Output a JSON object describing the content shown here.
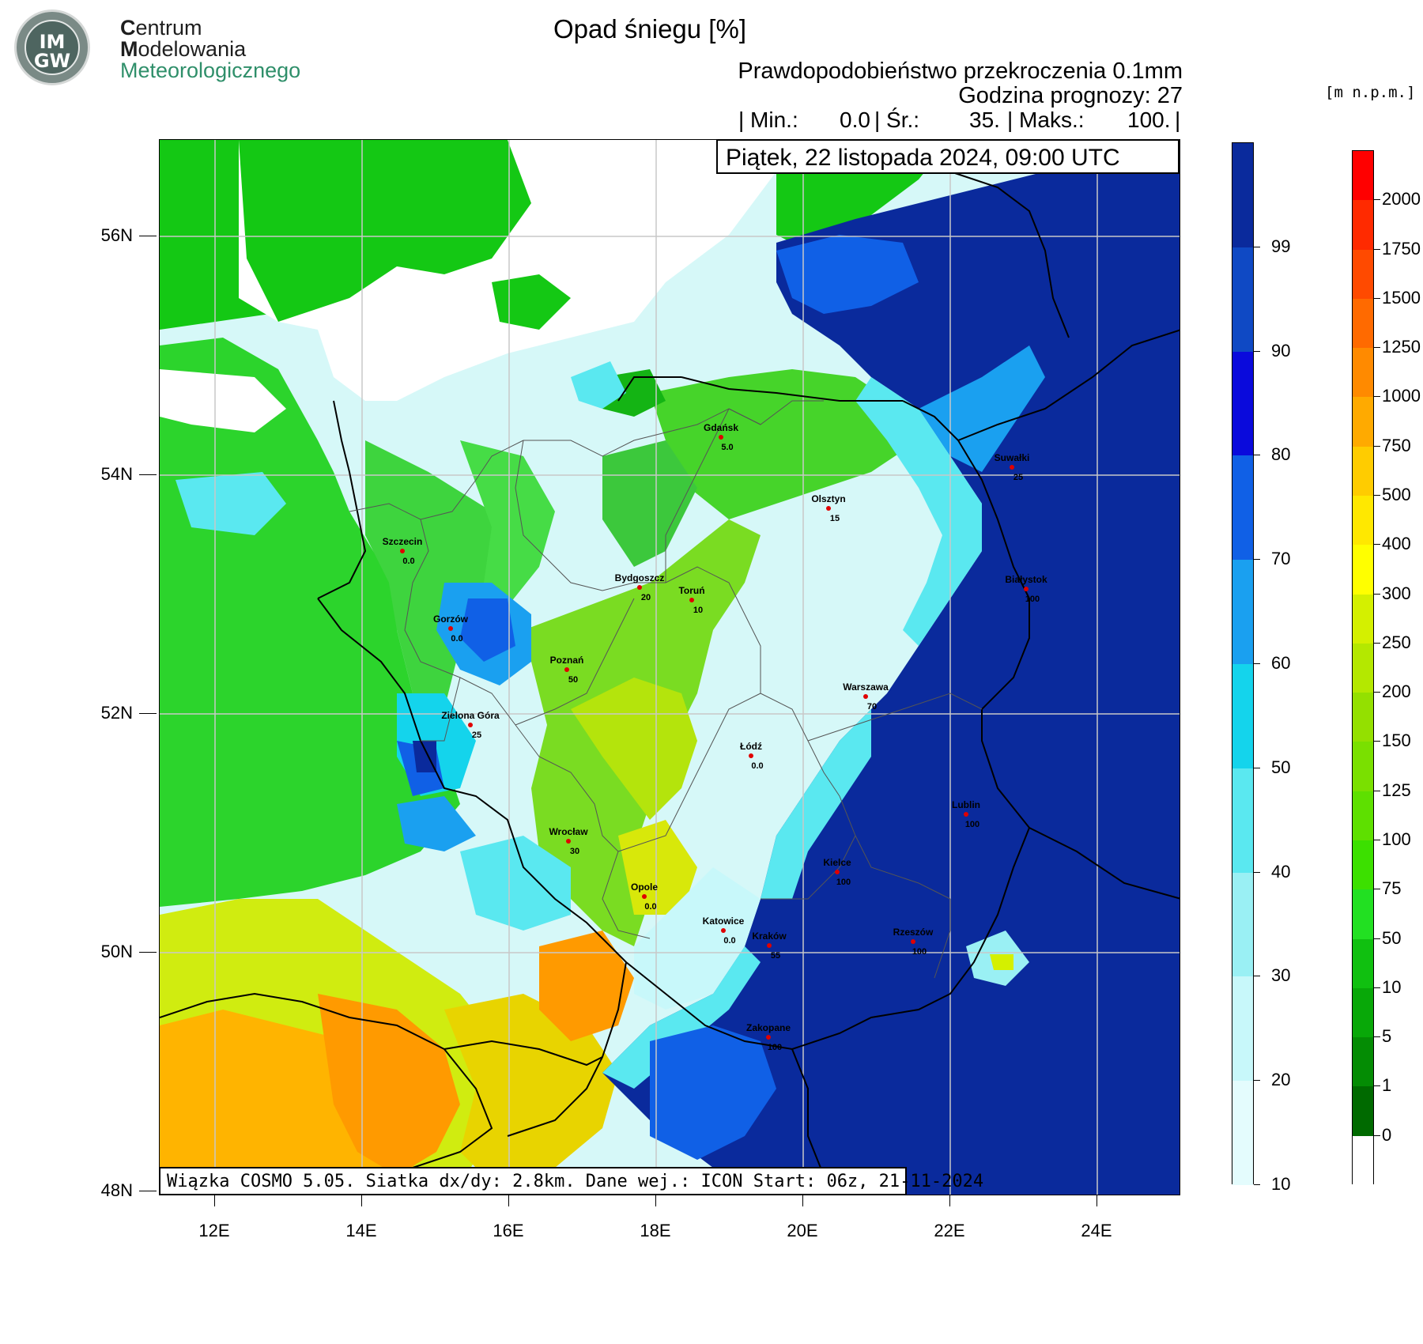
{
  "logo": {
    "circle_top": "IM",
    "circle_bottom": "GW",
    "line1_initial": "C",
    "line1_rest": "entrum",
    "line2_initial": "M",
    "line2_rest": "odelowania",
    "line3_initial": "M",
    "line3_rest": "eteorologicznego"
  },
  "header": {
    "title": "Opad śniegu [%]",
    "subtitle1": "Prawdopodobieństwo przekroczenia 0.1mm",
    "subtitle2": "Godzina prognozy: 27",
    "stats": {
      "min_label": "| Min.:",
      "min_value": "0.0",
      "mean_label": "| Śr.:",
      "mean_value": "35.",
      "max_label": "| Maks.:",
      "max_value": "100.",
      "end": "|"
    },
    "date": "Piątek, 22 listopada 2024, 09:00 UTC"
  },
  "footer_info": "Wiązka COSMO 5.05. Siatka dx/dy: 2.8km. Dane wej.: ICON Start: 06z, 21-11-2024",
  "axes": {
    "lat_labels": [
      "56N",
      "54N",
      "52N",
      "50N",
      "48N"
    ],
    "lon_labels": [
      "12E",
      "14E",
      "16E",
      "18E",
      "20E",
      "22E",
      "24E"
    ]
  },
  "cities": [
    {
      "name": "Gdańsk",
      "value": "5.0"
    },
    {
      "name": "Suwałki",
      "value": "25"
    },
    {
      "name": "Olsztyn",
      "value": "15"
    },
    {
      "name": "Szczecin",
      "value": "0.0"
    },
    {
      "name": "Białystok",
      "value": "100"
    },
    {
      "name": "Bydgoszcz",
      "value": "20"
    },
    {
      "name": "Toruń",
      "value": "10"
    },
    {
      "name": "Gorzów",
      "value": "0.0"
    },
    {
      "name": "Poznań",
      "value": "50"
    },
    {
      "name": "Warszawa",
      "value": "70"
    },
    {
      "name": "Zielona Góra",
      "value": "25"
    },
    {
      "name": "Łódź",
      "value": "0.0"
    },
    {
      "name": "Lublin",
      "value": "100"
    },
    {
      "name": "Wrocław",
      "value": "30"
    },
    {
      "name": "Kielce",
      "value": "100"
    },
    {
      "name": "Opole",
      "value": "0.0"
    },
    {
      "name": "Katowice",
      "value": "0.0"
    },
    {
      "name": "Kraków",
      "value": "55"
    },
    {
      "name": "Rzeszów",
      "value": "100"
    },
    {
      "name": "Zakopane",
      "value": "100"
    }
  ],
  "colorbar_snow": {
    "labels": [
      "99",
      "90",
      "80",
      "70",
      "60",
      "50",
      "40",
      "30",
      "20",
      "10"
    ],
    "colors": [
      "#0a2a9c",
      "#0f49c4",
      "#0a0adc",
      "#1060e6",
      "#1aa0f0",
      "#14d4ec",
      "#5ae8f0",
      "#9af0f4",
      "#c8f8fa",
      "#e4fcfd"
    ]
  },
  "colorbar_terrain": {
    "unit": "[m n.p.m.]",
    "labels": [
      "2000",
      "1750",
      "1500",
      "1250",
      "1000",
      "750",
      "500",
      "400",
      "300",
      "250",
      "200",
      "150",
      "125",
      "100",
      "75",
      "50",
      "10",
      "5",
      "1",
      "0"
    ],
    "colors": [
      "#ff0000",
      "#ff2a00",
      "#ff4a00",
      "#ff6a00",
      "#ff8a00",
      "#ffaa00",
      "#ffcc00",
      "#ffe800",
      "#ffff00",
      "#d4f000",
      "#b4e800",
      "#94e000",
      "#7ae000",
      "#5ee000",
      "#3ce000",
      "#22e022",
      "#10c010",
      "#08a808",
      "#048c04",
      "#006a00",
      "#ffffff"
    ]
  }
}
